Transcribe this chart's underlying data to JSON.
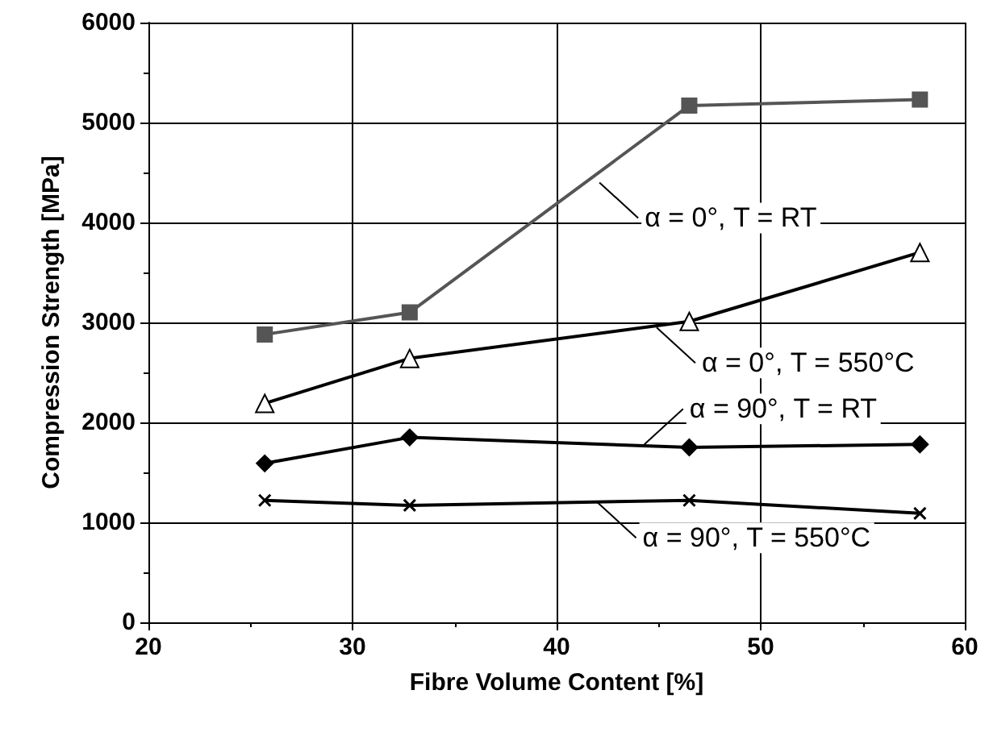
{
  "chart_data": {
    "type": "line",
    "xlabel": "Fibre Volume Content [%]",
    "ylabel": "Compression Strength [MPa]",
    "x": [
      25.7,
      32.8,
      46.5,
      57.8
    ],
    "series": [
      {
        "color": "#555555",
        "marker": "square",
        "values": [
          2880,
          3100,
          5170,
          5230
        ]
      },
      {
        "color": "#000000",
        "marker": "triangle",
        "values": [
          2190,
          2640,
          3010,
          3700
        ]
      },
      {
        "color": "#000000",
        "marker": "diamond",
        "values": [
          1590,
          1850,
          1750,
          1780
        ]
      },
      {
        "color": "#000000",
        "marker": "cross",
        "values": [
          1220,
          1170,
          1220,
          1090
        ]
      }
    ],
    "annotations": [
      {
        "text": "α = 0°, T = RT",
        "x": 42.1,
        "y": 4400
      },
      {
        "text": "α = 0°, T = 550°C",
        "x": 44.9,
        "y": 2950
      },
      {
        "text": "α = 90°, T = RT",
        "x": 44.3,
        "y": 1780
      },
      {
        "text": "α = 90°, T = 550°C",
        "x": 42,
        "y": 1200
      }
    ],
    "xlim": [
      20,
      60
    ],
    "xticks": [
      20,
      30,
      40,
      50,
      60
    ],
    "ylim": [
      0,
      6000
    ],
    "yticks": [
      0,
      1000,
      2000,
      3000,
      4000,
      5000,
      6000
    ],
    "grid": true,
    "line_style": "solid"
  }
}
